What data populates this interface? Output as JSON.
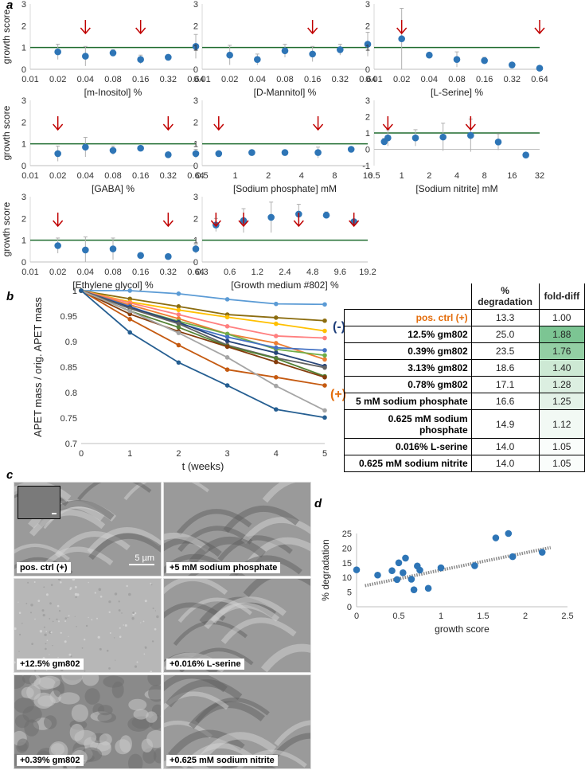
{
  "figure": {
    "panel_labels": {
      "a": "a",
      "b": "b",
      "c": "c",
      "d": "d"
    },
    "colors": {
      "point": "#2e75b6",
      "threshold": "#1e6b2e",
      "arrow": "#c00000",
      "errorbar": "#b0b0b0",
      "pos_label": "#e46c0a",
      "neg_label": "#1f3f7a"
    }
  },
  "chart_data": [
    {
      "id": "inositol",
      "type": "scatter",
      "xlabel": "[m-Inositol] %",
      "ylabel": "growth score",
      "x_ticks": [
        "0.01",
        "0.02",
        "0.04",
        "0.08",
        "0.16",
        "0.32",
        "0.64"
      ],
      "y_ticks": [
        "0",
        "1",
        "2",
        "3"
      ],
      "ylim": [
        0,
        3
      ],
      "threshold": 1,
      "x_index": [
        1,
        2,
        3,
        4,
        5,
        6
      ],
      "values": [
        0.8,
        0.6,
        0.75,
        0.45,
        0.55,
        1.05
      ],
      "errors": [
        0.35,
        0.45,
        0.15,
        0.2,
        0.1,
        0.55
      ],
      "arrows": [
        2,
        4
      ]
    },
    {
      "id": "mannitol",
      "type": "scatter",
      "xlabel": "[D-Mannitol] %",
      "ylabel": "",
      "x_ticks": [
        "0.01",
        "0.02",
        "0.04",
        "0.08",
        "0.16",
        "0.32",
        "0.64"
      ],
      "y_ticks": [
        "0",
        "1",
        "2",
        "3"
      ],
      "ylim": [
        0,
        3
      ],
      "threshold": 1,
      "x_index": [
        1,
        2,
        3,
        4,
        5,
        6
      ],
      "values": [
        0.65,
        0.45,
        0.85,
        0.7,
        0.9,
        1.15
      ],
      "errors": [
        0.45,
        0.25,
        0.3,
        0.35,
        0.25,
        0.55
      ],
      "arrows": [
        4
      ]
    },
    {
      "id": "serine",
      "type": "scatter",
      "xlabel": "[L-Serine] %",
      "ylabel": "",
      "x_ticks": [
        "0.01",
        "0.02",
        "0.04",
        "0.08",
        "0.16",
        "0.32",
        "0.64"
      ],
      "y_ticks": [
        "0",
        "1",
        "2",
        "3"
      ],
      "ylim": [
        0,
        3
      ],
      "threshold": 1,
      "x_index": [
        1,
        2,
        3,
        4,
        5,
        6
      ],
      "values": [
        1.4,
        0.65,
        0.45,
        0.4,
        0.2,
        0.05
      ],
      "errors": [
        1.4,
        0.05,
        0.35,
        0.15,
        0.05,
        0.02
      ],
      "arrows": [
        1,
        6
      ]
    },
    {
      "id": "gaba",
      "type": "scatter",
      "xlabel": "[GABA] %",
      "ylabel": "growth score",
      "x_ticks": [
        "0.01",
        "0.02",
        "0.04",
        "0.08",
        "0.16",
        "0.32",
        "0.64"
      ],
      "y_ticks": [
        "0",
        "1",
        "2",
        "3"
      ],
      "ylim": [
        0,
        3
      ],
      "threshold": 1,
      "x_index": [
        1,
        2,
        3,
        4,
        5,
        6
      ],
      "values": [
        0.55,
        0.85,
        0.7,
        0.8,
        0.5,
        0.55
      ],
      "errors": [
        0.35,
        0.45,
        0.2,
        0.1,
        0.1,
        0.2
      ],
      "arrows": [
        1,
        5
      ]
    },
    {
      "id": "phosphate",
      "type": "scatter",
      "xlabel": "[Sodium phosphate] mM",
      "ylabel": "",
      "x_ticks": [
        "0.5",
        "1",
        "2",
        "4",
        "8",
        "16"
      ],
      "y_ticks": [
        "0",
        "1",
        "2",
        "3"
      ],
      "ylim": [
        0,
        3
      ],
      "threshold": 1,
      "x_index": [
        0.5,
        1.5,
        2.5,
        3.5,
        4.5,
        5.5
      ],
      "values": [
        0.55,
        0.6,
        0.6,
        0.6,
        0.75,
        1.1
      ],
      "errors": [
        0.1,
        0.05,
        0.1,
        0.25,
        0.1,
        0.15
      ],
      "arrows": [
        0.5,
        3.5
      ]
    },
    {
      "id": "nitrite",
      "type": "scatter",
      "xlabel": "[Sodium nitrite] mM",
      "ylabel": "",
      "x_ticks": [
        "0.5",
        "1",
        "2",
        "4",
        "8",
        "16",
        "32"
      ],
      "y_ticks": [
        "-1",
        "0",
        "1",
        "2",
        "3"
      ],
      "ylim": [
        -1,
        3
      ],
      "threshold": 1,
      "x_index": [
        0.5,
        1.5,
        2.5,
        3.5,
        4.5,
        5.5
      ],
      "values": [
        0.7,
        0.7,
        0.75,
        0.85,
        0.45,
        -0.35
      ],
      "errors": [
        0.5,
        0.5,
        0.85,
        1.0,
        0.5,
        0.05
      ],
      "arrows": [
        0.5,
        3.5
      ]
    },
    {
      "id": "ethylene",
      "type": "scatter",
      "xlabel": "[Ethylene glycol] %",
      "ylabel": "growth score",
      "x_ticks": [
        "0.01",
        "0.02",
        "0.04",
        "0.08",
        "0.16",
        "0.32",
        "0.64"
      ],
      "y_ticks": [
        "0",
        "1",
        "2",
        "3"
      ],
      "ylim": [
        0,
        3
      ],
      "threshold": 1,
      "x_index": [
        1,
        2,
        3,
        4,
        5,
        6
      ],
      "values": [
        0.75,
        0.55,
        0.6,
        0.3,
        0.25,
        0.6
      ],
      "errors": [
        0.35,
        0.6,
        0.5,
        0.05,
        0.05,
        0.2
      ],
      "arrows": [
        1,
        5
      ]
    },
    {
      "id": "gm802",
      "type": "scatter",
      "xlabel": "[Growth medium #802] %",
      "ylabel": "",
      "x_ticks": [
        "0.3",
        "0.6",
        "1.2",
        "2.4",
        "4.8",
        "9.6",
        "19.2"
      ],
      "y_ticks": [
        "0",
        "1",
        "2",
        "3"
      ],
      "ylim": [
        0,
        3
      ],
      "threshold": 1,
      "x_index": [
        0.5,
        1.5,
        2.5,
        3.5,
        4.5,
        5.5
      ],
      "values": [
        1.7,
        1.9,
        2.05,
        2.2,
        2.15,
        1.85
      ],
      "errors": [
        0.3,
        0.55,
        0.7,
        0.45,
        0.15,
        0.1
      ],
      "arrows": [
        0.5,
        1.5,
        3.5,
        5.5
      ]
    },
    {
      "id": "degradation",
      "type": "line",
      "xlabel": "t (weeks)",
      "ylabel": "APET mass / orig. APET mass",
      "x": [
        0,
        1,
        2,
        3,
        4,
        5
      ],
      "ylim": [
        0.7,
        1
      ],
      "y_ticks": [
        "0.7",
        "0.75",
        "0.8",
        "0.85",
        "0.9",
        "0.95",
        "1"
      ],
      "x_ticks": [
        "0",
        "1",
        "2",
        "3",
        "4",
        "5"
      ],
      "neg_label": "(-)",
      "pos_label": "(+)",
      "series": [
        {
          "name": "(-)",
          "color": "#5b9bd5",
          "values": [
            1,
            1,
            0.994,
            0.983,
            0.974,
            0.973
          ]
        },
        {
          "name": "s1",
          "color": "#8c6d10",
          "values": [
            1,
            0.984,
            0.969,
            0.953,
            0.947,
            0.941
          ]
        },
        {
          "name": "s2",
          "color": "#ffc000",
          "values": [
            1,
            0.978,
            0.962,
            0.948,
            0.935,
            0.921
          ]
        },
        {
          "name": "s3",
          "color": "#ff7f7f",
          "values": [
            1,
            0.976,
            0.953,
            0.93,
            0.911,
            0.907
          ]
        },
        {
          "name": "(+)",
          "color": "#ed7d31",
          "values": [
            1,
            0.972,
            0.945,
            0.915,
            0.897,
            0.865
          ]
        },
        {
          "name": "s5",
          "color": "#70ad47",
          "values": [
            1,
            0.967,
            0.94,
            0.915,
            0.885,
            0.873
          ]
        },
        {
          "name": "s6",
          "color": "#4472c4",
          "values": [
            1,
            0.969,
            0.936,
            0.909,
            0.888,
            0.883
          ]
        },
        {
          "name": "s7",
          "color": "#264478",
          "values": [
            1,
            0.967,
            0.938,
            0.901,
            0.878,
            0.852
          ]
        },
        {
          "name": "s8",
          "color": "#636363",
          "values": [
            1,
            0.965,
            0.935,
            0.893,
            0.868,
            0.849
          ]
        },
        {
          "name": "s9",
          "color": "#548235",
          "values": [
            1,
            0.96,
            0.928,
            0.891,
            0.867,
            0.832
          ]
        },
        {
          "name": "s10",
          "color": "#843c0c",
          "values": [
            1,
            0.954,
            0.92,
            0.89,
            0.86,
            0.83
          ]
        },
        {
          "name": "s11",
          "color": "#c55a11",
          "values": [
            1,
            0.944,
            0.893,
            0.845,
            0.83,
            0.814
          ]
        },
        {
          "name": "s12",
          "color": "#a5a5a5",
          "values": [
            1,
            0.96,
            0.917,
            0.869,
            0.813,
            0.765
          ]
        },
        {
          "name": "s13",
          "color": "#255e91",
          "values": [
            1,
            0.918,
            0.859,
            0.814,
            0.767,
            0.751
          ]
        }
      ]
    },
    {
      "id": "correlation",
      "type": "scatter",
      "xlabel": "growth score",
      "ylabel": "% degradation",
      "x_ticks": [
        "0",
        "0.5",
        "1",
        "1.5",
        "2",
        "2.5"
      ],
      "y_ticks": [
        "0",
        "5",
        "10",
        "15",
        "20",
        "25"
      ],
      "xlim": [
        0,
        2.5
      ],
      "ylim": [
        0,
        25
      ],
      "x": [
        0.0,
        0.25,
        0.42,
        0.48,
        0.5,
        0.55,
        0.58,
        0.65,
        0.68,
        0.72,
        0.75,
        0.85,
        1.0,
        1.4,
        1.65,
        1.8,
        1.85,
        2.2
      ],
      "y": [
        12.6,
        10.8,
        12.3,
        9.3,
        15.0,
        11.6,
        16.6,
        9.4,
        5.8,
        13.9,
        12.5,
        6.3,
        13.3,
        14.0,
        23.5,
        25.0,
        17.1,
        18.6
      ],
      "trend": [
        [
          0.1,
          7.2
        ],
        [
          2.3,
          20.2
        ]
      ]
    }
  ],
  "table": {
    "headers": {
      "pct": "% degradation",
      "fold": "fold-diff"
    },
    "rows": [
      {
        "condition": "pos. ctrl (+)",
        "pct": "13.3",
        "fold": "1.00",
        "fill": "#ffffff",
        "cond_color": "#e46c0a"
      },
      {
        "condition": "12.5% gm802",
        "pct": "25.0",
        "fold": "1.88",
        "fill": "#7cc593",
        "cond_color": "#000000"
      },
      {
        "condition": "0.39% gm802",
        "pct": "23.5",
        "fold": "1.76",
        "fill": "#93cfa4",
        "cond_color": "#000000"
      },
      {
        "condition": "3.13% gm802",
        "pct": "18.6",
        "fold": "1.40",
        "fill": "#cde9d4",
        "cond_color": "#000000"
      },
      {
        "condition": "0.78% gm802",
        "pct": "17.1",
        "fold": "1.28",
        "fill": "#dcefe1",
        "cond_color": "#000000"
      },
      {
        "condition": "5 mM sodium phosphate",
        "pct": "16.6",
        "fold": "1.25",
        "fill": "#e3f2e7",
        "cond_color": "#000000"
      },
      {
        "condition": "0.625 mM sodium phosphate",
        "pct": "14.9",
        "fold": "1.12",
        "fill": "#f2f9f4",
        "cond_color": "#000000"
      },
      {
        "condition": "0.016% L-serine",
        "pct": "14.0",
        "fold": "1.05",
        "fill": "#fafdfb",
        "cond_color": "#000000"
      },
      {
        "condition": "0.625 mM sodium nitrite",
        "pct": "14.0",
        "fold": "1.05",
        "fill": "#fafdfb",
        "cond_color": "#000000"
      }
    ]
  },
  "sem": {
    "scale_bar": "5 µm",
    "tiles": [
      {
        "label": "pos. ctrl (+)",
        "texture": "ridged"
      },
      {
        "label": "+5 mM sodium phosphate",
        "texture": "ridged"
      },
      {
        "label": "+12.5% gm802",
        "texture": "smooth"
      },
      {
        "label": "+0.016% L-serine",
        "texture": "ridged"
      },
      {
        "label": "+0.39% gm802",
        "texture": "bumpy"
      },
      {
        "label": "+0.625 mM sodium nitrite",
        "texture": "ridged"
      }
    ]
  }
}
